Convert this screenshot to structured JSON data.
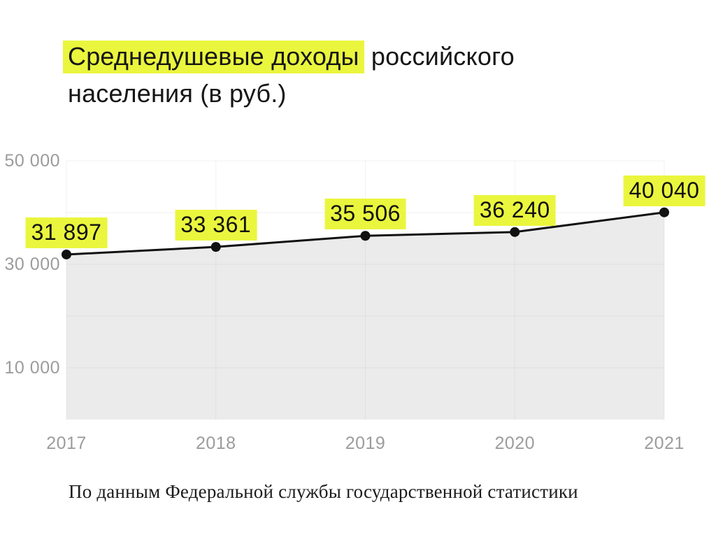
{
  "title": {
    "highlighted_text": "Среднедушевые доходы",
    "rest_line1": " российского",
    "line2": "населения (в руб.)"
  },
  "footer": {
    "source_text": "По данным Федеральной службы государственной статистики"
  },
  "colors": {
    "highlight": "#eaf63d",
    "line": "#111111",
    "point": "#111111",
    "area_fill": "#ebebeb",
    "grid": "rgba(17,17,17,0.055)",
    "axis_text": "#9c9c9c",
    "title_text": "#161616",
    "footer_text": "#1c1c1c",
    "background": "#ffffff"
  },
  "chart_data": {
    "type": "line",
    "area": true,
    "marker": "circle",
    "title": "Среднедушевые доходы российского населения (в руб.)",
    "categories": [
      "2017",
      "2018",
      "2019",
      "2020",
      "2021"
    ],
    "series": [
      {
        "name": "Среднедушевые доходы",
        "values": [
          31897,
          33361,
          35506,
          36240,
          40040
        ]
      }
    ],
    "point_labels": [
      "31 897",
      "33 361",
      "35 506",
      "36 240",
      "40 040"
    ],
    "xlabel": "",
    "ylabel": "",
    "ylim": [
      0,
      50000
    ],
    "grid_step": 10000,
    "grid": "on",
    "legend_position": "none",
    "ytick_values": [
      10000,
      30000,
      50000
    ],
    "ytick_labels": [
      "10 000",
      "30 000",
      "50 000"
    ]
  }
}
